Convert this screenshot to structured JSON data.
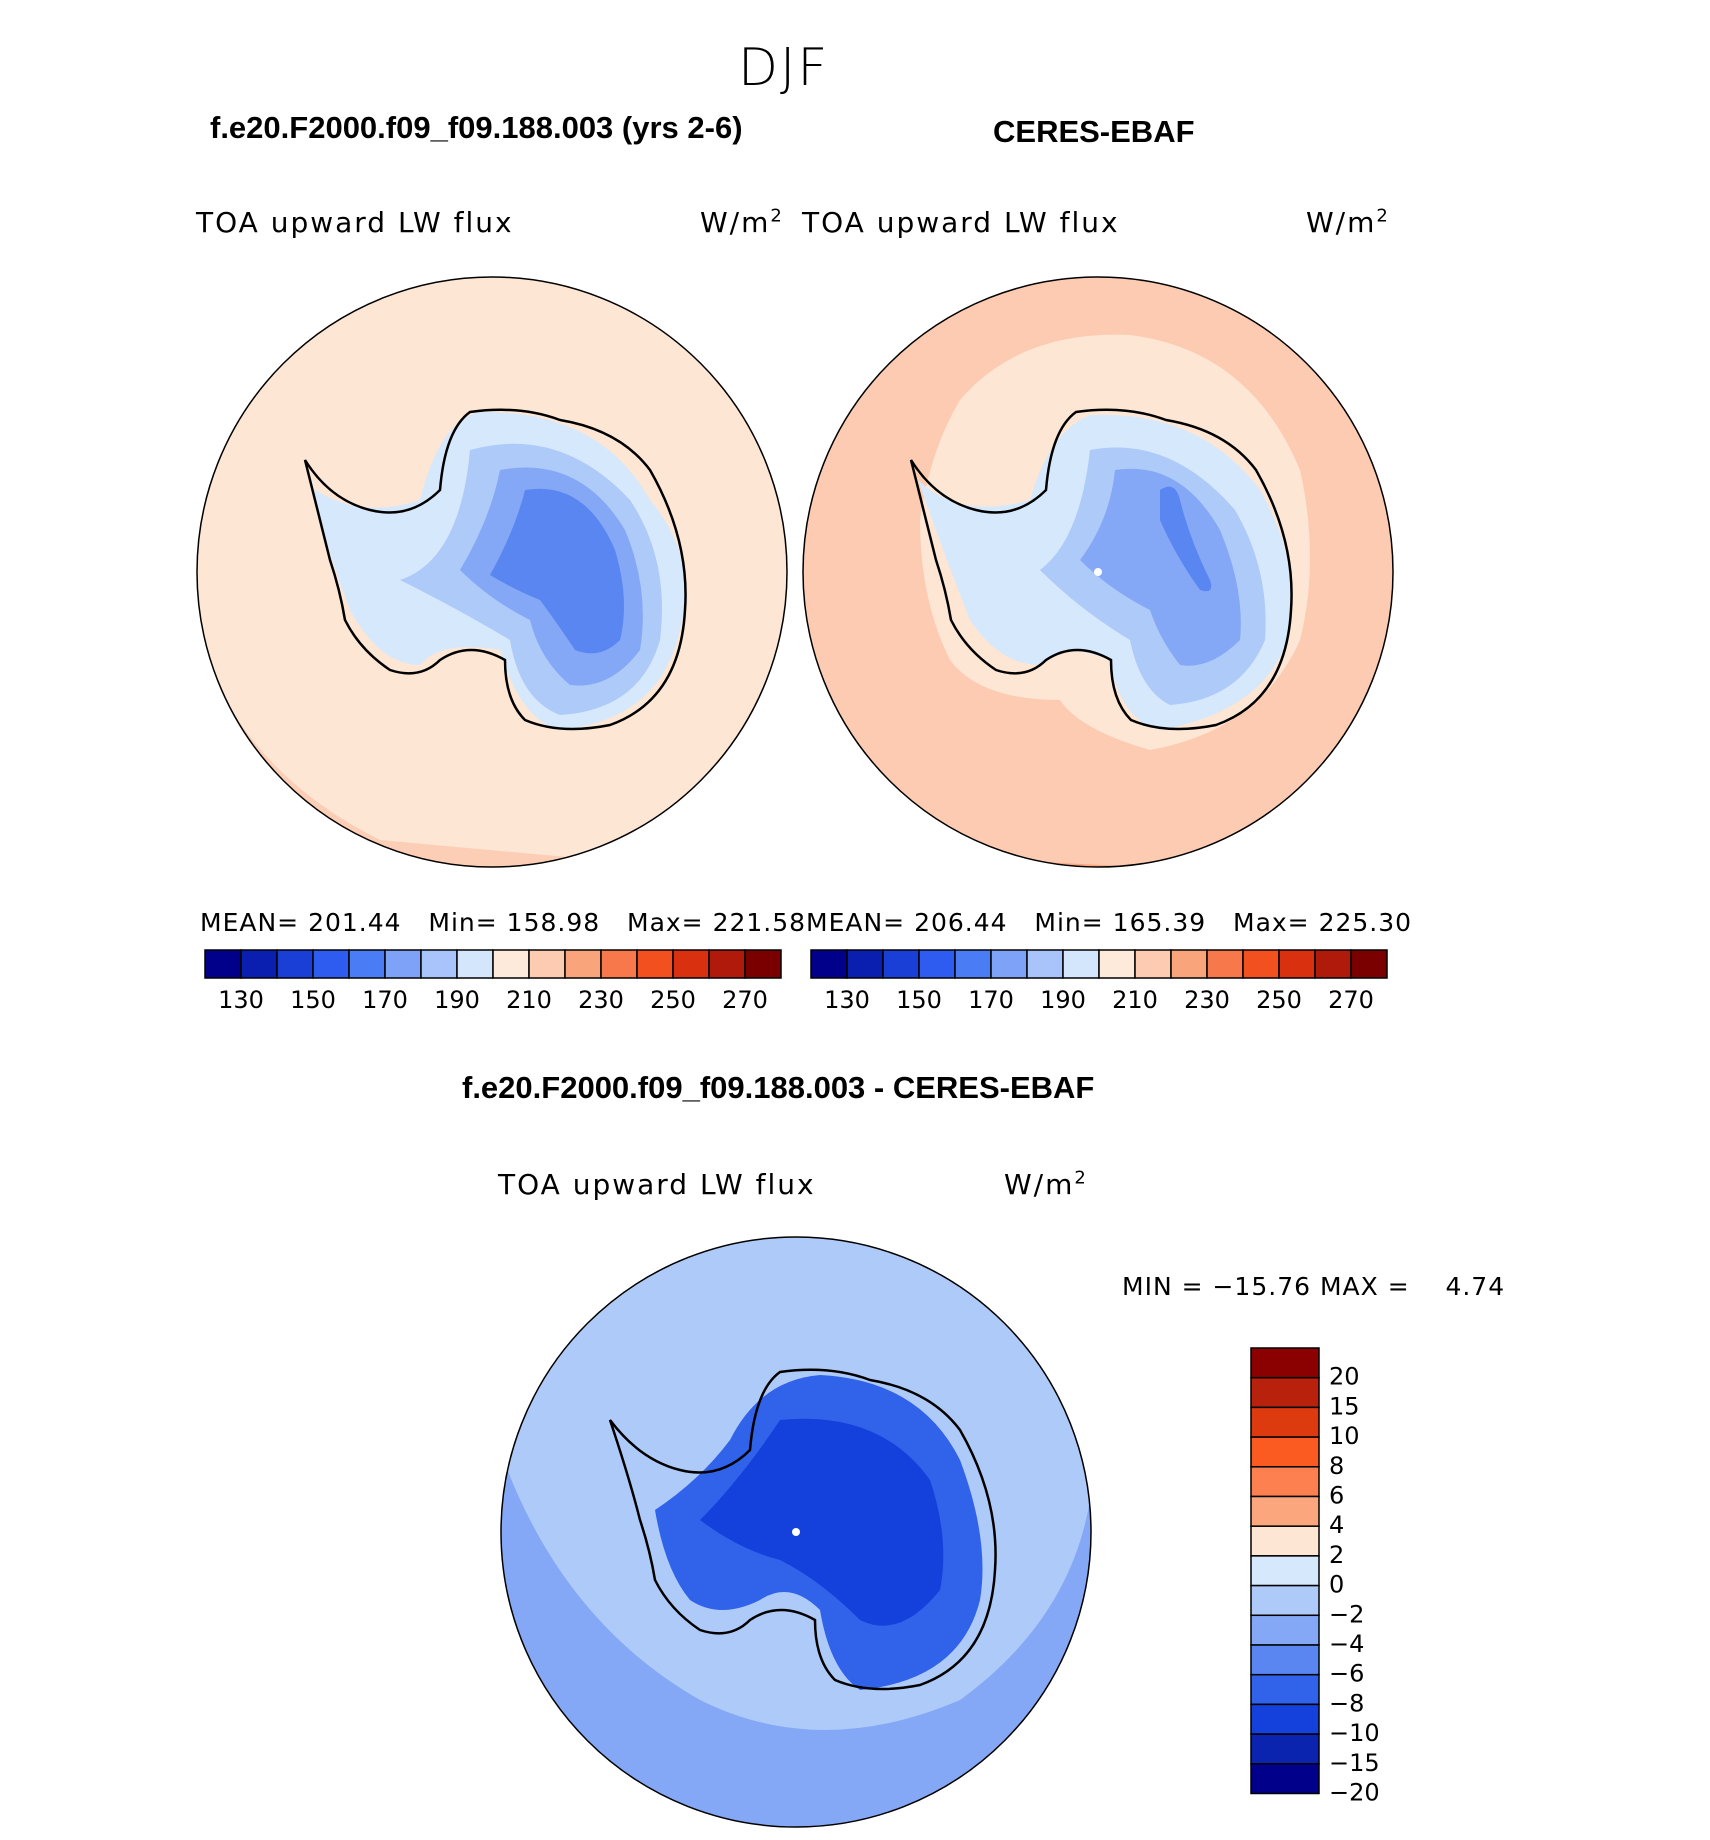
{
  "season": "DJF",
  "panels": [
    {
      "case": "f.e20.F2000.f09_f09.188.003 (yrs 2-6)",
      "variable": "TOA upward LW flux",
      "units": "W/m",
      "units_exp": "2",
      "mean_label": "MEAN=",
      "mean": "201.44",
      "min_label": "Min=",
      "min": "158.98",
      "max_label": "Max=",
      "max": "221.58"
    },
    {
      "case": "CERES-EBAF",
      "variable": "TOA upward LW flux",
      "units": "W/m",
      "units_exp": "2",
      "mean_label": "MEAN=",
      "mean": "206.44",
      "min_label": "Min=",
      "min": "165.39",
      "max_label": "Max=",
      "max": "225.30"
    }
  ],
  "diff": {
    "case": "f.e20.F2000.f09_f09.188.003 - CERES-EBAF",
    "variable": "TOA upward LW flux",
    "units": "W/m",
    "units_exp": "2",
    "minmax_text": "MIN = −15.76 MAX =",
    "max_value": "4.74"
  },
  "colorbar_top": {
    "ticks": [
      "130",
      "150",
      "170",
      "190",
      "210",
      "230",
      "250",
      "270"
    ],
    "colors": [
      "#00008b",
      "#0a1fb0",
      "#1a3fd6",
      "#2e5cf0",
      "#4a7cf5",
      "#7ea2f7",
      "#a9c4fa",
      "#d4e6fb",
      "#feeadb",
      "#fccbb2",
      "#faa47c",
      "#f7784a",
      "#f2501f",
      "#d93010",
      "#b01a0a",
      "#7a0000"
    ]
  },
  "colorbar_diff": {
    "labels": [
      "20",
      "15",
      "10",
      "8",
      "6",
      "4",
      "2",
      "0",
      "−2",
      "−4",
      "−6",
      "−8",
      "−10",
      "−15",
      "−20"
    ],
    "colors": [
      "#8b0000",
      "#b8220c",
      "#de3a10",
      "#fb5a20",
      "#fc8050",
      "#fca67e",
      "#fde6d4",
      "#d6e8fc",
      "#aecaf8",
      "#84a8f5",
      "#5986f1",
      "#3062ea",
      "#1440dc",
      "#0a24b0",
      "#00008b"
    ]
  },
  "map_colors": {
    "ocean_warm": "#fde6d4",
    "ocean_warmer": "#fccbb2",
    "ocean_hot": "#faa47c",
    "ice_edge": "#d6e8fc",
    "ice_mid": "#aecaf8",
    "ice_low": "#84a8f5",
    "ice_core": "#5986f1",
    "ice_deep": "#3062ea",
    "diff_ocean": "#aecaf8",
    "diff_ocean2": "#84a8f5",
    "diff_land": "#3062ea",
    "diff_land_core": "#1440dc"
  }
}
